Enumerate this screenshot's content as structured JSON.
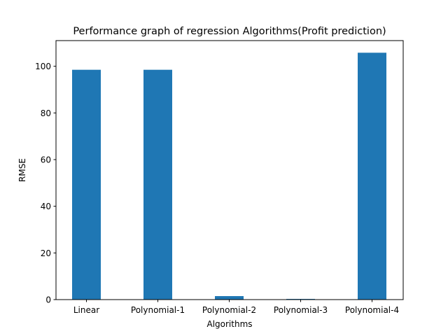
{
  "chart_data": {
    "type": "bar",
    "title": "Performance graph of regression Algorithms(Profit prediction)",
    "xlabel": "Algorithms",
    "ylabel": "RMSE",
    "categories": [
      "Linear",
      "Polynomial-1",
      "Polynomial-2",
      "Polynomial-3",
      "Polynomial-4"
    ],
    "values": [
      98.5,
      98.5,
      1.5,
      0.3,
      105.8
    ],
    "ylim": [
      0,
      111
    ],
    "yticks": [
      0,
      20,
      40,
      60,
      80,
      100
    ],
    "grid": false,
    "legend": "none",
    "bar_color": "#1f77b4"
  }
}
